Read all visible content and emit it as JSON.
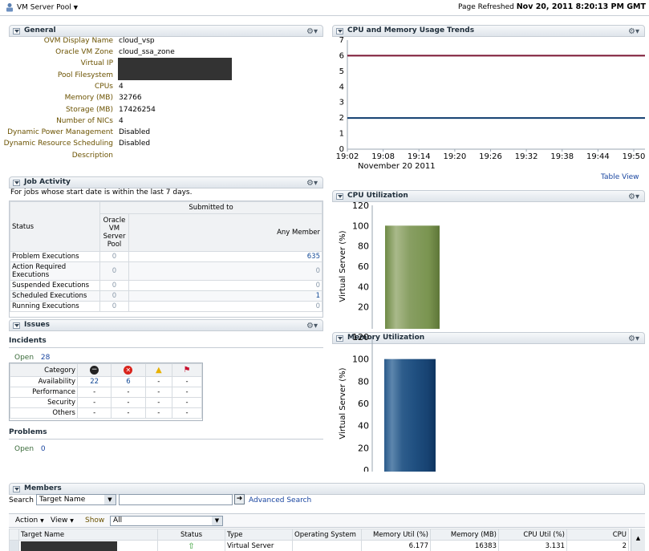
{
  "top": {
    "title": "VM Server Pool",
    "refreshed_label": "Page Refreshed",
    "refreshed_value": "Nov 20, 2011 8:20:13 PM GMT"
  },
  "general": {
    "title": "General",
    "rows": [
      {
        "label": "OVM Display Name",
        "value": "cloud_vsp"
      },
      {
        "label": "Oracle VM Zone",
        "value": "cloud_ssa_zone"
      },
      {
        "label": "Virtual IP",
        "value": ""
      },
      {
        "label": "Pool Filesystem",
        "value": ""
      },
      {
        "label": "CPUs",
        "value": "4"
      },
      {
        "label": "Memory (MB)",
        "value": "32766"
      },
      {
        "label": "Storage (MB)",
        "value": "17426254"
      },
      {
        "label": "Number of NICs",
        "value": "4"
      },
      {
        "label": "Dynamic Power Management",
        "value": "Disabled"
      },
      {
        "label": "Dynamic Resource Scheduling",
        "value": "Disabled"
      },
      {
        "label": "Description",
        "value": ""
      }
    ]
  },
  "job": {
    "title": "Job Activity",
    "subtitle": "For jobs whose start date is within the last 7 days.",
    "status_header": "Status",
    "submitted_header": "Submitted to",
    "col1_header": "Oracle VM Server Pool",
    "col2_header": "Any Member",
    "rows": [
      {
        "status": "Problem Executions",
        "pool": "0",
        "member": "635"
      },
      {
        "status": "Action Required Executions",
        "pool": "0",
        "member": "0"
      },
      {
        "status": "Suspended Executions",
        "pool": "0",
        "member": "0"
      },
      {
        "status": "Scheduled Executions",
        "pool": "0",
        "member": "1"
      },
      {
        "status": "Running Executions",
        "pool": "0",
        "member": "0"
      }
    ]
  },
  "issues": {
    "title": "Issues",
    "incidents_label": "Incidents",
    "open_label": "Open",
    "open_count": "28",
    "category_header": "Category",
    "rows": [
      {
        "category": "Availability",
        "c1": "22",
        "c2": "6",
        "c3": "-",
        "c4": "-"
      },
      {
        "category": "Performance",
        "c1": "-",
        "c2": "-",
        "c3": "-",
        "c4": "-"
      },
      {
        "category": "Security",
        "c1": "-",
        "c2": "-",
        "c3": "-",
        "c4": "-"
      },
      {
        "category": "Others",
        "c1": "-",
        "c2": "-",
        "c3": "-",
        "c4": "-"
      }
    ],
    "problems_label": "Problems",
    "problems_open_label": "Open",
    "problems_open_count": "0"
  },
  "trend": {
    "title": "CPU and Memory Usage Trends",
    "table_view": "Table View",
    "date_label": "November 20 2011"
  },
  "cpu_util": {
    "title": "CPU Utilization"
  },
  "mem_util": {
    "title": "Memory Utilization"
  },
  "chart_data": [
    {
      "type": "line",
      "title": "CPU and Memory Usage Trends",
      "x": [
        "19:02",
        "19:08",
        "19:14",
        "19:20",
        "19:26",
        "19:32",
        "19:38",
        "19:44",
        "19:50"
      ],
      "series": [
        {
          "name": "series-red",
          "values": [
            6,
            6,
            6,
            6,
            6,
            6,
            6,
            6,
            6
          ],
          "color": "#7a1633"
        },
        {
          "name": "series-blue",
          "values": [
            2,
            2,
            2,
            2,
            2,
            2,
            2,
            2,
            2
          ],
          "color": "#0e3c6e"
        }
      ],
      "ylim": [
        0,
        7
      ],
      "yticks": [
        "0",
        "1",
        "2",
        "3",
        "4",
        "5",
        "6",
        "7"
      ],
      "xlabel": "November 20 2011",
      "ylabel": ""
    },
    {
      "type": "bar",
      "title": "CPU Utilization",
      "categories": [
        ""
      ],
      "values": [
        100
      ],
      "ylabel": "Virtual Server (%)",
      "ylim": [
        0,
        120
      ],
      "yticks": [
        "20",
        "40",
        "60",
        "80",
        "100",
        "120"
      ],
      "color": "#7f9457"
    },
    {
      "type": "bar",
      "title": "Memory Utilization",
      "categories": [
        ""
      ],
      "values": [
        100
      ],
      "ylabel": "Virtual Server (%)",
      "ylim": [
        0,
        120
      ],
      "yticks": [
        "0",
        "20",
        "40",
        "60",
        "80",
        "100",
        "120"
      ],
      "color": "#1a4a7a"
    }
  ],
  "members": {
    "title": "Members",
    "search_label": "Search",
    "search_field": "Target Name",
    "search_value": "",
    "advanced_search": "Advanced Search",
    "action_label": "Action",
    "view_label": "View",
    "show_label": "Show",
    "show_value": "All",
    "columns": [
      "Target Name",
      "Status",
      "Type",
      "Operating System",
      "Memory Util (%)",
      "Memory (MB)",
      "CPU Util (%)",
      "CPU"
    ],
    "row": {
      "type": "Virtual Server",
      "os": "",
      "mem_util": "6.177",
      "mem_mb": "16383",
      "cpu_util": "3.131",
      "cpu": "2"
    }
  },
  "colors": {
    "panel_header": "#dfe5eb",
    "accent_link": "#1a46a0",
    "label_brown": "#6b5200"
  }
}
